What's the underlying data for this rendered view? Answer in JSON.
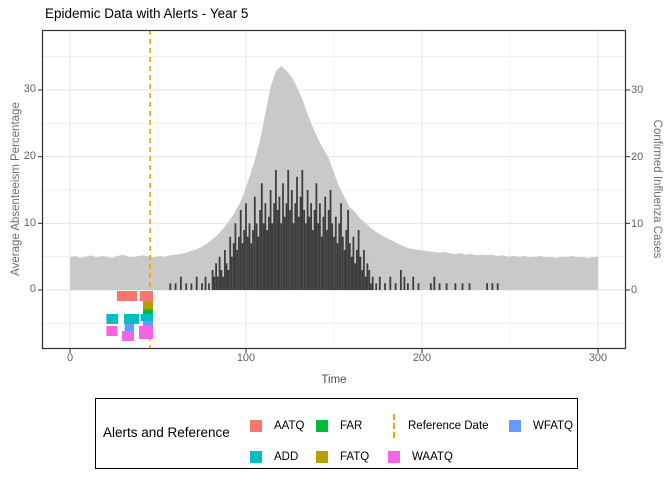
{
  "title": "Epidemic Data with Alerts - Year 5",
  "axes": {
    "x": {
      "title": "Time",
      "tick_labels": [
        "0",
        "100",
        "200",
        "300"
      ],
      "ticks": [
        0,
        100,
        200,
        300
      ],
      "minor": [
        50,
        150,
        250
      ],
      "range": [
        -15.8,
        315.8
      ]
    },
    "y_left": {
      "title": "Average Absenteeism Percentage",
      "tick_labels": [
        "0",
        "10",
        "20",
        "30"
      ],
      "ticks": [
        0,
        10,
        20,
        30
      ],
      "minor": [
        -5,
        5,
        15,
        25,
        35
      ],
      "range": [
        -8.85,
        39
      ]
    },
    "y_right": {
      "title": "Confirmed Influenza Cases",
      "tick_labels": [
        "0",
        "10",
        "20",
        "30"
      ],
      "ticks": [
        0,
        10,
        20,
        30
      ]
    }
  },
  "colors": {
    "area": "#C9C9C9",
    "bars": "#3E3E3E",
    "reference": "#F5A302",
    "grid_major": "#E3E3E3",
    "grid_minor": "#F1F1F1",
    "panel_border": "#2F2F2F",
    "aatq": "#F8766D",
    "add": "#00BFC4",
    "far": "#00BA38",
    "fatq": "#B79F00",
    "waatq": "#F564E3",
    "wfatq": "#619CFF"
  },
  "reference_line": {
    "label": "Reference Date",
    "x": 45.5,
    "color": "#F5A302"
  },
  "chart_data": {
    "type": "composite",
    "title": "Epidemic Data with Alerts - Year 5",
    "xlabel": "Time",
    "series": [
      {
        "name": "Average Absenteeism Percentage",
        "type": "area",
        "axis": "left",
        "color": "#C9C9C9",
        "x": [
          0,
          3,
          6,
          9,
          12,
          15,
          18,
          21,
          24,
          27,
          30,
          33,
          36,
          39,
          42,
          45,
          48,
          51,
          54,
          57,
          60,
          63,
          66,
          69,
          72,
          75,
          78,
          81,
          84,
          87,
          90,
          93,
          96,
          99,
          102,
          105,
          108,
          111,
          114,
          117,
          120,
          123,
          126,
          129,
          132,
          135,
          138,
          141,
          144,
          147,
          150,
          153,
          156,
          159,
          162,
          165,
          168,
          171,
          174,
          177,
          180,
          183,
          186,
          189,
          192,
          195,
          198,
          201,
          204,
          207,
          210,
          213,
          216,
          219,
          222,
          225,
          228,
          231,
          234,
          237,
          240,
          243,
          246,
          249,
          252,
          255,
          258,
          261,
          264,
          267,
          270,
          273,
          276,
          279,
          282,
          285,
          288,
          291,
          294,
          297,
          300
        ],
        "y": [
          4.9,
          5.1,
          4.8,
          5.0,
          5.2,
          4.9,
          5.1,
          5.0,
          4.8,
          5.1,
          5.3,
          5.0,
          4.9,
          5.1,
          5.2,
          5.0,
          4.9,
          5.1,
          5.0,
          5.2,
          5.3,
          5.4,
          5.6,
          5.9,
          6.1,
          6.5,
          7.0,
          7.6,
          8.3,
          9.2,
          10.2,
          11.4,
          12.8,
          14.6,
          17.0,
          19.5,
          22.5,
          26.5,
          30.5,
          32.8,
          33.6,
          32.9,
          31.9,
          30.4,
          28.6,
          26.4,
          24.4,
          22.6,
          21.2,
          19.8,
          17.6,
          15.4,
          13.9,
          12.4,
          11.7,
          10.7,
          10.0,
          9.3,
          8.7,
          8.2,
          7.8,
          7.4,
          7.0,
          6.6,
          6.3,
          6.1,
          6.0,
          5.9,
          5.8,
          5.7,
          5.6,
          5.7,
          5.5,
          5.4,
          5.5,
          5.3,
          5.4,
          5.2,
          5.3,
          5.2,
          5.3,
          5.1,
          5.2,
          5.0,
          5.1,
          5.0,
          5.1,
          4.9,
          5.0,
          5.1,
          4.9,
          5.0,
          4.8,
          5.0,
          4.9,
          5.1,
          4.9,
          5.0,
          4.8,
          4.9,
          5.0
        ]
      },
      {
        "name": "Confirmed Influenza Cases",
        "type": "bar",
        "axis": "right",
        "color": "#3E3E3E",
        "points": [
          [
            57,
            1
          ],
          [
            60,
            1
          ],
          [
            63,
            2
          ],
          [
            66,
            1
          ],
          [
            69,
            1
          ],
          [
            72,
            2
          ],
          [
            75,
            1
          ],
          [
            77,
            2
          ],
          [
            79,
            1
          ],
          [
            81,
            3
          ],
          [
            82,
            2
          ],
          [
            83,
            4
          ],
          [
            84,
            2
          ],
          [
            85,
            5
          ],
          [
            86,
            3
          ],
          [
            87,
            2
          ],
          [
            88,
            6
          ],
          [
            89,
            4
          ],
          [
            90,
            3
          ],
          [
            91,
            8
          ],
          [
            92,
            5
          ],
          [
            93,
            7
          ],
          [
            94,
            10
          ],
          [
            95,
            6
          ],
          [
            96,
            8
          ],
          [
            97,
            12
          ],
          [
            98,
            7
          ],
          [
            99,
            9
          ],
          [
            100,
            13
          ],
          [
            101,
            8
          ],
          [
            102,
            10
          ],
          [
            103,
            7
          ],
          [
            104,
            9
          ],
          [
            105,
            14
          ],
          [
            106,
            10
          ],
          [
            107,
            8
          ],
          [
            108,
            12
          ],
          [
            109,
            16
          ],
          [
            110,
            10
          ],
          [
            111,
            13
          ],
          [
            112,
            9
          ],
          [
            113,
            11
          ],
          [
            114,
            15
          ],
          [
            115,
            10
          ],
          [
            116,
            13
          ],
          [
            117,
            18
          ],
          [
            118,
            12
          ],
          [
            119,
            14
          ],
          [
            120,
            10
          ],
          [
            121,
            16
          ],
          [
            122,
            11
          ],
          [
            123,
            13
          ],
          [
            124,
            18
          ],
          [
            125,
            12
          ],
          [
            126,
            15
          ],
          [
            127,
            10
          ],
          [
            128,
            13
          ],
          [
            129,
            17
          ],
          [
            130,
            11
          ],
          [
            131,
            14
          ],
          [
            132,
            18
          ],
          [
            133,
            12
          ],
          [
            134,
            10
          ],
          [
            135,
            15
          ],
          [
            136,
            11
          ],
          [
            137,
            13
          ],
          [
            138,
            9
          ],
          [
            139,
            12
          ],
          [
            140,
            16
          ],
          [
            141,
            10
          ],
          [
            142,
            13
          ],
          [
            143,
            8
          ],
          [
            144,
            11
          ],
          [
            145,
            14
          ],
          [
            146,
            9
          ],
          [
            147,
            12
          ],
          [
            148,
            15
          ],
          [
            149,
            10
          ],
          [
            150,
            8
          ],
          [
            151,
            11
          ],
          [
            152,
            7
          ],
          [
            153,
            10
          ],
          [
            154,
            13
          ],
          [
            155,
            8
          ],
          [
            156,
            6
          ],
          [
            157,
            9
          ],
          [
            158,
            12
          ],
          [
            159,
            7
          ],
          [
            160,
            5
          ],
          [
            161,
            8
          ],
          [
            162,
            4
          ],
          [
            163,
            6
          ],
          [
            164,
            9
          ],
          [
            165,
            5
          ],
          [
            166,
            3
          ],
          [
            167,
            6
          ],
          [
            168,
            2
          ],
          [
            169,
            4
          ],
          [
            170,
            3
          ],
          [
            171,
            1
          ],
          [
            172,
            2
          ],
          [
            174,
            1
          ],
          [
            176,
            2
          ],
          [
            179,
            1
          ],
          [
            182,
            2
          ],
          [
            185,
            1
          ],
          [
            188,
            3
          ],
          [
            190,
            2
          ],
          [
            192,
            1
          ],
          [
            195,
            2
          ],
          [
            198,
            1
          ],
          [
            205,
            1
          ],
          [
            207,
            2
          ],
          [
            210,
            1
          ],
          [
            214,
            1
          ],
          [
            219,
            1
          ],
          [
            223,
            1
          ],
          [
            227,
            1
          ],
          [
            237,
            1
          ],
          [
            240,
            1
          ],
          [
            243,
            1
          ]
        ]
      }
    ],
    "alerts": [
      {
        "name": "AATQ",
        "color": "#F8766D",
        "rects": [
          [
            26.7,
            38.1,
            -0.15,
            -1.65
          ],
          [
            39.8,
            47.2,
            -0.15,
            -1.65
          ]
        ]
      },
      {
        "name": "FATQ",
        "color": "#B79F00",
        "rects": [
          [
            41.5,
            47.2,
            -1.65,
            -2.93
          ]
        ]
      },
      {
        "name": "FAR",
        "color": "#00BA38",
        "rects": [
          [
            41.5,
            47.2,
            -2.93,
            -3.9
          ]
        ]
      },
      {
        "name": "ADD",
        "color": "#00BFC4",
        "rects": [
          [
            20.7,
            27.3,
            -3.6,
            -5.1
          ],
          [
            30.7,
            39.2,
            -3.6,
            -5.1
          ],
          [
            40.1,
            47.2,
            -3.6,
            -4.65
          ]
        ]
      },
      {
        "name": "WFATQ",
        "color": "#619CFF",
        "rects": [
          [
            31.0,
            36.4,
            -5.1,
            -6.6
          ],
          [
            41.5,
            47.2,
            -4.65,
            -5.85
          ]
        ]
      },
      {
        "name": "WAATQ",
        "color": "#F564E3",
        "rects": [
          [
            20.7,
            27.0,
            -5.4,
            -6.9
          ],
          [
            29.5,
            36.4,
            -6.15,
            -7.65
          ],
          [
            39.2,
            47.2,
            -5.4,
            -7.35
          ]
        ]
      }
    ],
    "reference_line_x": 45.5
  },
  "legend": {
    "title": "Alerts and Reference",
    "entries": [
      {
        "label": "AATQ",
        "color": "#F8766D",
        "type": "square"
      },
      {
        "label": "ADD",
        "color": "#00BFC4",
        "type": "square"
      },
      {
        "label": "FAR",
        "color": "#00BA38",
        "type": "square"
      },
      {
        "label": "FATQ",
        "color": "#B79F00",
        "type": "square"
      },
      {
        "label": "Reference Date",
        "color": "#F5A302",
        "type": "dashed-line"
      },
      {
        "label": "WAATQ",
        "color": "#F564E3",
        "type": "square"
      },
      {
        "label": "WFATQ",
        "color": "#619CFF",
        "type": "square"
      }
    ]
  }
}
